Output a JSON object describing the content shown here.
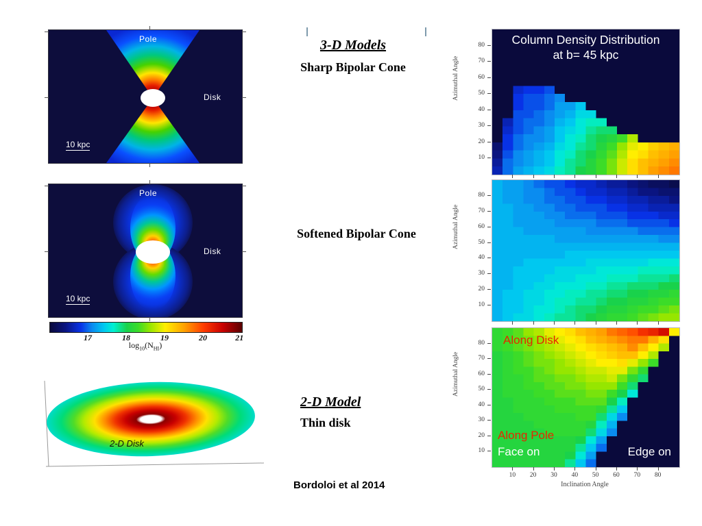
{
  "slide": {
    "caption": "Bordoloi et al 2014"
  },
  "middle_column": {
    "heading_3d": "3-D Models",
    "sharp_label": "Sharp Bipolar Cone",
    "soft_label": "Softened Bipolar Cone",
    "heading_2d": "2-D Model",
    "thin_label": "Thin disk"
  },
  "left_column": {
    "sharp_panel": {
      "pole_label": "Pole",
      "disk_label": "Disk",
      "scale_label": "10 kpc"
    },
    "soft_panel": {
      "pole_label": "Pole",
      "disk_label": "Disk",
      "scale_label": "10 kpc"
    },
    "disk_panel": {
      "label": "2-D Disk"
    },
    "colorbar": {
      "ticks": [
        "17",
        "18",
        "19",
        "20",
        "21"
      ],
      "tick_positions_pct": [
        20,
        40,
        60,
        80,
        99
      ],
      "label_parts": {
        "pre": "log",
        "sub1": "10",
        "mid": "(N",
        "sub2": "HI",
        "post": ")"
      }
    }
  },
  "right_column": {
    "title_line1": "Column Density Distribution",
    "title_line2": "at b= 45 kpc",
    "ylabel": "Azimuthal Angle",
    "xlabel": "Inclination Angle",
    "y_ticks": [
      10,
      20,
      30,
      40,
      50,
      60,
      70,
      80
    ],
    "x_ticks": [
      10,
      20,
      30,
      40,
      50,
      60,
      70,
      80
    ],
    "annotations": {
      "along_disk": "Along Disk",
      "along_pole": "Along Pole",
      "face_on": "Face on",
      "edge_on": "Edge on",
      "red_color": "#e62600",
      "white_color": "#ffffff"
    }
  },
  "chart_meta": {
    "value_scale": "log10(N_HI)",
    "value_min": 16.0,
    "value_max": 21.0,
    "background_color": "#0d0d3c",
    "colormap_stops": [
      [
        0.0,
        "#0a0a3c"
      ],
      [
        0.08,
        "#0a1480"
      ],
      [
        0.16,
        "#0832e6"
      ],
      [
        0.22,
        "#0a8cf0"
      ],
      [
        0.28,
        "#00c8f0"
      ],
      [
        0.33,
        "#00f0d2"
      ],
      [
        0.4,
        "#19d24b"
      ],
      [
        0.46,
        "#3cdc28"
      ],
      [
        0.52,
        "#96e600"
      ],
      [
        0.6,
        "#ffee00"
      ],
      [
        0.7,
        "#ffa000"
      ],
      [
        0.8,
        "#ff3c00"
      ],
      [
        0.9,
        "#c80000"
      ],
      [
        1.0,
        "#5a0000"
      ]
    ]
  },
  "chart_data": [
    {
      "type": "heatmap",
      "name": "sharp-bipolar-cone-column-density",
      "dom_id": "hm-sharp",
      "title": "Column Density Distribution at b= 45 kpc",
      "xlabel": "Inclination Angle",
      "ylabel": "Azimuthal Angle",
      "x_range": [
        0,
        90
      ],
      "y_range": [
        0,
        90
      ],
      "bin_deg": 5,
      "background_value": 16.0,
      "rows_top_to_bottom": [
        [
          16,
          16,
          16,
          16,
          16,
          16,
          16,
          16,
          16,
          16,
          16,
          16,
          16,
          16,
          16,
          16,
          16,
          16
        ],
        [
          16,
          16,
          16,
          16,
          16,
          16,
          16,
          16,
          16,
          16,
          16,
          16,
          16,
          16,
          16,
          16,
          16,
          16
        ],
        [
          16,
          16,
          16,
          16,
          16,
          16,
          16,
          16,
          16,
          16,
          16,
          16,
          16,
          16,
          16,
          16,
          16,
          16
        ],
        [
          16,
          16,
          16,
          16,
          16,
          16,
          16,
          16,
          16,
          16,
          16,
          16,
          16,
          16,
          16,
          16,
          16,
          16
        ],
        [
          16,
          16,
          16,
          16,
          16,
          16,
          16,
          16,
          16,
          16,
          16,
          16,
          16,
          16,
          16,
          16,
          16,
          16
        ],
        [
          16,
          16,
          16,
          16,
          16,
          16,
          16,
          16,
          16,
          16,
          16,
          16,
          16,
          16,
          16,
          16,
          16,
          16
        ],
        [
          16,
          16,
          16,
          16,
          16,
          16,
          16,
          16,
          16,
          16,
          16,
          16,
          16,
          16,
          16,
          16,
          16,
          16
        ],
        [
          16,
          16,
          16.7,
          16.8,
          16.8,
          16.9,
          16,
          16,
          16,
          16,
          16,
          16,
          16,
          16,
          16,
          16,
          16,
          16
        ],
        [
          16,
          16,
          16.8,
          16.9,
          16.9,
          17.0,
          17.1,
          16,
          16,
          16,
          16,
          16,
          16,
          16,
          16,
          16,
          16,
          16
        ],
        [
          16,
          16,
          16.8,
          16.9,
          16.9,
          17.0,
          17.2,
          17.2,
          17.4,
          16,
          16,
          16,
          16,
          16,
          16,
          16,
          16,
          16
        ],
        [
          16,
          16,
          16.9,
          16.9,
          17.0,
          17.1,
          17.2,
          17.3,
          17.5,
          17.5,
          16,
          16,
          16,
          16,
          16,
          16,
          16,
          16
        ],
        [
          16,
          16.6,
          16.9,
          17.0,
          17.0,
          17.1,
          17.3,
          17.4,
          17.6,
          17.7,
          17.7,
          16,
          16,
          16,
          16,
          16,
          16,
          16
        ],
        [
          16,
          16.7,
          16.9,
          17.0,
          17.1,
          17.2,
          17.4,
          17.5,
          17.6,
          17.8,
          17.9,
          17.9,
          16,
          16,
          16,
          16,
          16,
          16
        ],
        [
          16,
          16.8,
          17.0,
          17.1,
          17.1,
          17.2,
          17.4,
          17.6,
          17.7,
          17.9,
          18.0,
          18.1,
          18.3,
          18.7,
          16,
          16,
          16,
          16
        ],
        [
          16.3,
          16.8,
          17.0,
          17.1,
          17.2,
          17.3,
          17.5,
          17.6,
          17.8,
          17.9,
          18.1,
          18.3,
          18.6,
          18.9,
          19.0,
          19.2,
          19.3,
          19.4
        ],
        [
          16.4,
          16.9,
          17.1,
          17.2,
          17.3,
          17.4,
          17.6,
          17.7,
          17.9,
          18.0,
          18.2,
          18.4,
          18.7,
          19.0,
          19.1,
          19.3,
          19.4,
          19.5
        ],
        [
          16.5,
          17.0,
          17.1,
          17.2,
          17.3,
          17.4,
          17.6,
          17.8,
          17.9,
          18.1,
          18.3,
          18.5,
          18.8,
          19.1,
          19.3,
          19.4,
          19.5,
          19.6
        ],
        [
          16.6,
          17.0,
          17.2,
          17.3,
          17.4,
          17.5,
          17.7,
          17.8,
          18.0,
          18.1,
          18.3,
          18.5,
          18.8,
          19.1,
          19.3,
          19.5,
          19.6,
          19.7
        ]
      ]
    },
    {
      "type": "heatmap",
      "name": "softened-bipolar-cone-column-density",
      "dom_id": "hm-soft",
      "xlabel": "Inclination Angle",
      "ylabel": "Azimuthal Angle",
      "x_range": [
        0,
        90
      ],
      "y_range": [
        0,
        90
      ],
      "bin_deg": 5,
      "background_value": 16.0,
      "rows_top_to_bottom": [
        [
          17.3,
          17.2,
          17.2,
          17.1,
          17.0,
          16.9,
          16.9,
          16.8,
          16.7,
          16.7,
          16.6,
          16.5,
          16.5,
          16.4,
          16.3,
          16.2,
          16.2,
          16.1
        ],
        [
          17.3,
          17.2,
          17.2,
          17.1,
          17.1,
          17.0,
          16.9,
          16.9,
          16.8,
          16.7,
          16.7,
          16.6,
          16.6,
          16.5,
          16.4,
          16.4,
          16.3,
          16.3
        ],
        [
          17.3,
          17.2,
          17.2,
          17.1,
          17.1,
          17.0,
          17.0,
          16.9,
          16.9,
          16.8,
          16.8,
          16.7,
          16.7,
          16.6,
          16.6,
          16.5,
          16.5,
          16.4
        ],
        [
          17.3,
          17.3,
          17.2,
          17.2,
          17.1,
          17.1,
          17.0,
          17.0,
          16.9,
          16.9,
          16.9,
          16.8,
          16.8,
          16.7,
          16.7,
          16.6,
          16.6,
          16.6
        ],
        [
          17.3,
          17.3,
          17.2,
          17.2,
          17.2,
          17.1,
          17.1,
          17.0,
          17.0,
          17.0,
          16.9,
          16.9,
          16.9,
          16.8,
          16.8,
          16.8,
          16.7,
          16.7
        ],
        [
          17.3,
          17.3,
          17.2,
          17.2,
          17.2,
          17.2,
          17.1,
          17.1,
          17.1,
          17.1,
          17.0,
          17.0,
          17.0,
          16.9,
          16.9,
          16.9,
          16.9,
          16.8
        ],
        [
          17.3,
          17.3,
          17.3,
          17.2,
          17.2,
          17.2,
          17.2,
          17.2,
          17.2,
          17.1,
          17.1,
          17.1,
          17.1,
          17.1,
          17.0,
          17.0,
          17.0,
          17.0
        ],
        [
          17.3,
          17.3,
          17.3,
          17.3,
          17.3,
          17.3,
          17.2,
          17.2,
          17.2,
          17.2,
          17.2,
          17.2,
          17.2,
          17.2,
          17.2,
          17.2,
          17.1,
          17.1
        ],
        [
          17.3,
          17.3,
          17.3,
          17.3,
          17.3,
          17.3,
          17.3,
          17.3,
          17.3,
          17.3,
          17.3,
          17.3,
          17.3,
          17.3,
          17.3,
          17.3,
          17.3,
          17.3
        ],
        [
          17.3,
          17.3,
          17.3,
          17.3,
          17.3,
          17.3,
          17.3,
          17.4,
          17.4,
          17.4,
          17.4,
          17.4,
          17.4,
          17.4,
          17.4,
          17.4,
          17.4,
          17.4
        ],
        [
          17.3,
          17.3,
          17.3,
          17.4,
          17.4,
          17.4,
          17.4,
          17.4,
          17.4,
          17.5,
          17.5,
          17.5,
          17.5,
          17.5,
          17.5,
          17.6,
          17.6,
          17.6
        ],
        [
          17.3,
          17.3,
          17.4,
          17.4,
          17.4,
          17.4,
          17.5,
          17.5,
          17.5,
          17.5,
          17.6,
          17.6,
          17.6,
          17.6,
          17.7,
          17.7,
          17.7,
          17.7
        ],
        [
          17.3,
          17.3,
          17.4,
          17.4,
          17.4,
          17.5,
          17.5,
          17.5,
          17.6,
          17.6,
          17.6,
          17.7,
          17.7,
          17.7,
          17.8,
          17.8,
          17.8,
          17.9
        ],
        [
          17.3,
          17.3,
          17.4,
          17.4,
          17.5,
          17.5,
          17.6,
          17.6,
          17.6,
          17.7,
          17.7,
          17.8,
          17.8,
          17.9,
          17.9,
          17.9,
          18.0,
          18.0
        ],
        [
          17.3,
          17.4,
          17.4,
          17.5,
          17.5,
          17.6,
          17.6,
          17.7,
          17.7,
          17.8,
          17.8,
          17.9,
          17.9,
          18.0,
          18.0,
          18.1,
          18.1,
          18.2
        ],
        [
          17.3,
          17.4,
          17.4,
          17.5,
          17.5,
          17.6,
          17.7,
          17.7,
          17.8,
          17.8,
          17.9,
          18.0,
          18.0,
          18.1,
          18.1,
          18.2,
          18.3,
          18.3
        ],
        [
          17.3,
          17.4,
          17.4,
          17.5,
          17.6,
          17.6,
          17.7,
          17.8,
          17.9,
          17.9,
          18.0,
          18.1,
          18.1,
          18.2,
          18.3,
          18.3,
          18.4,
          18.5
        ],
        [
          17.3,
          17.4,
          17.5,
          17.5,
          17.6,
          17.7,
          17.8,
          17.8,
          17.9,
          18.0,
          18.1,
          18.2,
          18.2,
          18.3,
          18.4,
          18.5,
          18.6,
          18.6
        ]
      ]
    },
    {
      "type": "heatmap",
      "name": "thin-disk-column-density",
      "dom_id": "hm-disk",
      "xlabel": "Inclination Angle",
      "ylabel": "Azimuthal Angle",
      "x_range": [
        0,
        90
      ],
      "y_range": [
        0,
        90
      ],
      "bin_deg": 5,
      "background_value": 16.0,
      "annotations": [
        "Along Disk",
        "Along Pole",
        "Face on",
        "Edge on"
      ],
      "rows_top_to_bottom": [
        [
          18.2,
          18.3,
          18.4,
          18.6,
          18.7,
          18.9,
          19.0,
          19.1,
          19.3,
          19.4,
          19.5,
          19.7,
          19.8,
          19.9,
          20.1,
          20.2,
          20.4,
          19.0
        ],
        [
          18.2,
          18.3,
          18.4,
          18.5,
          18.6,
          18.8,
          18.9,
          19.0,
          19.1,
          19.3,
          19.4,
          19.5,
          19.6,
          19.7,
          19.7,
          19.4,
          19.1,
          16
        ],
        [
          18.2,
          18.3,
          18.4,
          18.5,
          18.6,
          18.7,
          18.8,
          18.9,
          19.0,
          19.1,
          19.2,
          19.3,
          19.4,
          19.6,
          19.3,
          19.0,
          18.7,
          16
        ],
        [
          18.1,
          18.2,
          18.3,
          18.4,
          18.5,
          18.6,
          18.7,
          18.8,
          18.9,
          19.0,
          19.1,
          19.2,
          19.3,
          19.3,
          19.0,
          18.7,
          16,
          16
        ],
        [
          18.1,
          18.2,
          18.3,
          18.4,
          18.5,
          18.5,
          18.6,
          18.7,
          18.8,
          18.9,
          19.0,
          19.0,
          19.1,
          18.9,
          18.6,
          18.3,
          16,
          16
        ],
        [
          18.1,
          18.2,
          18.3,
          18.3,
          18.4,
          18.5,
          18.6,
          18.6,
          18.7,
          18.8,
          18.8,
          18.9,
          18.9,
          18.5,
          18.2,
          16,
          16,
          16
        ],
        [
          18.1,
          18.2,
          18.2,
          18.3,
          18.4,
          18.4,
          18.5,
          18.5,
          18.6,
          18.7,
          18.7,
          18.8,
          18.5,
          18.2,
          17.9,
          16,
          16,
          16
        ],
        [
          18.1,
          18.2,
          18.2,
          18.3,
          18.3,
          18.4,
          18.4,
          18.5,
          18.5,
          18.6,
          18.6,
          18.6,
          18.3,
          17.9,
          16,
          16,
          16,
          16
        ],
        [
          18.1,
          18.2,
          18.2,
          18.2,
          18.3,
          18.3,
          18.4,
          18.4,
          18.4,
          18.5,
          18.5,
          18.3,
          18.0,
          17.6,
          16,
          16,
          16,
          16
        ],
        [
          18.1,
          18.1,
          18.2,
          18.2,
          18.2,
          18.3,
          18.3,
          18.3,
          18.4,
          18.4,
          18.4,
          18.0,
          17.7,
          16,
          16,
          16,
          16,
          16
        ],
        [
          18.1,
          18.1,
          18.2,
          18.2,
          18.2,
          18.2,
          18.3,
          18.3,
          18.3,
          18.3,
          18.2,
          17.8,
          17.4,
          16,
          16,
          16,
          16,
          16
        ],
        [
          18.1,
          18.1,
          18.1,
          18.2,
          18.2,
          18.2,
          18.2,
          18.2,
          18.3,
          18.3,
          17.9,
          17.5,
          17.1,
          16,
          16,
          16,
          16,
          16
        ],
        [
          18.1,
          18.1,
          18.1,
          18.1,
          18.2,
          18.2,
          18.2,
          18.2,
          18.2,
          18.1,
          17.7,
          17.3,
          16,
          16,
          16,
          16,
          16,
          16
        ],
        [
          18.1,
          18.1,
          18.1,
          18.1,
          18.1,
          18.2,
          18.2,
          18.2,
          18.2,
          17.9,
          17.5,
          17.1,
          16,
          16,
          16,
          16,
          16,
          16
        ],
        [
          18.1,
          18.1,
          18.1,
          18.1,
          18.1,
          18.1,
          18.1,
          18.1,
          18.0,
          17.6,
          17.2,
          16,
          16,
          16,
          16,
          16,
          16,
          16
        ],
        [
          18.1,
          18.1,
          18.1,
          18.1,
          18.1,
          18.1,
          18.1,
          18.1,
          17.8,
          17.4,
          17.0,
          16,
          16,
          16,
          16,
          16,
          16,
          16
        ],
        [
          18.1,
          18.1,
          18.1,
          18.1,
          18.1,
          18.1,
          18.1,
          18.0,
          17.6,
          17.2,
          16,
          16,
          16,
          16,
          16,
          16,
          16,
          16
        ],
        [
          18.1,
          18.1,
          18.1,
          18.1,
          18.1,
          18.1,
          18.1,
          17.8,
          17.4,
          17.0,
          16,
          16,
          16,
          16,
          16,
          16,
          16,
          16
        ]
      ]
    }
  ]
}
